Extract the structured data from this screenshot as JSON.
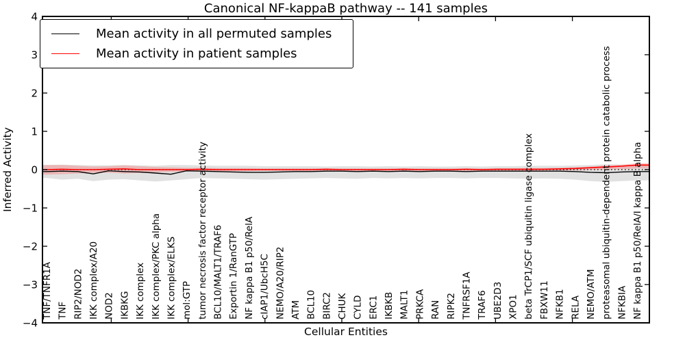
{
  "chart_data": {
    "type": "line",
    "title": "Canonical NF-kappaB pathway -- 141 samples",
    "xlabel": "Cellular Entities",
    "ylabel": "Inferred Activity",
    "ylim": [
      -4,
      4
    ],
    "y_ticks": [
      4,
      3,
      2,
      1,
      0,
      -1,
      -2,
      -3,
      -4
    ],
    "grid": false,
    "legend_position": "upper left",
    "zero_line": {
      "style": "dotted",
      "color": "#000000",
      "y": 0
    },
    "categories": [
      "TNF/TNFR1A",
      "TNF",
      "RIP2/NOD2",
      "IKK complex/A20",
      "NOD2",
      "IKBKG",
      "IKK complex",
      "IKK complex/PKC alpha",
      "IKK complex/ELKS",
      "mol:GTP",
      "tumor necrosis factor receptor activity",
      "BCL10/MALT1/TRAF6",
      "Exportin 1/RanGTP",
      "NF kappa B1 p50/RelA",
      "cIAP1/UbcH5C",
      "NEMO/A20/RIP2",
      "ATM",
      "BCL10",
      "BIRC2",
      "CHUK",
      "CYLD",
      "ERC1",
      "IKBKB",
      "MALT1",
      "PRKCA",
      "RAN",
      "RIPK2",
      "TNFRSF1A",
      "TRAF6",
      "UBE2D3",
      "XPO1",
      "beta TrCP1/SCF ubiquitin ligase complex",
      "FBXW11",
      "NFKB1",
      "RELA",
      "NEMO/ATM",
      "proteasomal ubiquitin-dependent protein catabolic process",
      "NFKBIA",
      "NF kappa B1 p50/RelA/I kappa B alpha"
    ],
    "series": [
      {
        "name": "Mean activity in all permuted samples",
        "color": "#000000",
        "band_color": "#aaaaaa",
        "values": [
          -0.05,
          -0.04,
          -0.05,
          -0.11,
          -0.03,
          -0.05,
          -0.06,
          -0.09,
          -0.12,
          -0.03,
          -0.04,
          -0.05,
          -0.06,
          -0.07,
          -0.07,
          -0.06,
          -0.05,
          -0.05,
          -0.04,
          -0.04,
          -0.05,
          -0.04,
          -0.05,
          -0.04,
          -0.05,
          -0.04,
          -0.04,
          -0.05,
          -0.04,
          -0.04,
          -0.04,
          -0.04,
          -0.04,
          -0.04,
          -0.05,
          -0.07,
          -0.08,
          -0.06,
          -0.05
        ],
        "band_low": [
          -0.22,
          -0.26,
          -0.24,
          -0.3,
          -0.26,
          -0.25,
          -0.28,
          -0.31,
          -0.28,
          -0.25,
          -0.22,
          -0.23,
          -0.24,
          -0.25,
          -0.26,
          -0.25,
          -0.24,
          -0.23,
          -0.22,
          -0.23,
          -0.24,
          -0.22,
          -0.23,
          -0.22,
          -0.23,
          -0.22,
          -0.22,
          -0.23,
          -0.22,
          -0.22,
          -0.23,
          -0.24,
          -0.23,
          -0.24,
          -0.26,
          -0.3,
          -0.32,
          -0.3,
          -0.28
        ],
        "band_high": [
          0.12,
          0.13,
          0.12,
          0.11,
          0.11,
          0.12,
          0.11,
          0.1,
          0.12,
          0.12,
          0.11,
          0.1,
          0.1,
          0.1,
          0.09,
          0.09,
          0.09,
          0.09,
          0.08,
          0.09,
          0.09,
          0.08,
          0.09,
          0.08,
          0.09,
          0.08,
          0.08,
          0.09,
          0.08,
          0.09,
          0.09,
          0.1,
          0.1,
          0.1,
          0.11,
          0.12,
          0.14,
          0.13,
          0.12
        ]
      },
      {
        "name": "Mean activity in patient samples",
        "color": "#ff0000",
        "band_color": "#ff5555",
        "values": [
          0.0,
          0.01,
          0.0,
          0.0,
          0.01,
          0.02,
          0.0,
          0.0,
          0.0,
          0.0,
          0.01,
          0.0,
          0.0,
          0.0,
          0.0,
          0.0,
          0.0,
          0.0,
          0.01,
          0.0,
          0.0,
          0.0,
          0.0,
          0.01,
          0.0,
          0.0,
          0.0,
          0.01,
          0.0,
          0.01,
          0.01,
          0.01,
          0.01,
          0.02,
          0.03,
          0.05,
          0.07,
          0.09,
          0.12
        ],
        "band_low": [
          -0.13,
          -0.12,
          -0.1,
          -0.08,
          -0.08,
          -0.1,
          -0.09,
          -0.07,
          -0.06,
          -0.05,
          -0.05,
          -0.04,
          -0.04,
          -0.04,
          -0.03,
          -0.03,
          -0.03,
          -0.03,
          -0.03,
          -0.03,
          -0.03,
          -0.03,
          -0.03,
          -0.03,
          -0.03,
          -0.03,
          -0.03,
          -0.03,
          -0.03,
          -0.03,
          -0.03,
          -0.03,
          -0.02,
          -0.02,
          -0.02,
          -0.01,
          0.0,
          0.01,
          0.03
        ],
        "band_high": [
          0.12,
          0.12,
          0.1,
          0.08,
          0.09,
          0.11,
          0.09,
          0.07,
          0.06,
          0.05,
          0.05,
          0.04,
          0.04,
          0.04,
          0.03,
          0.03,
          0.03,
          0.03,
          0.03,
          0.03,
          0.03,
          0.03,
          0.03,
          0.03,
          0.03,
          0.03,
          0.03,
          0.03,
          0.03,
          0.03,
          0.03,
          0.04,
          0.04,
          0.05,
          0.06,
          0.08,
          0.11,
          0.13,
          0.17
        ]
      }
    ]
  }
}
